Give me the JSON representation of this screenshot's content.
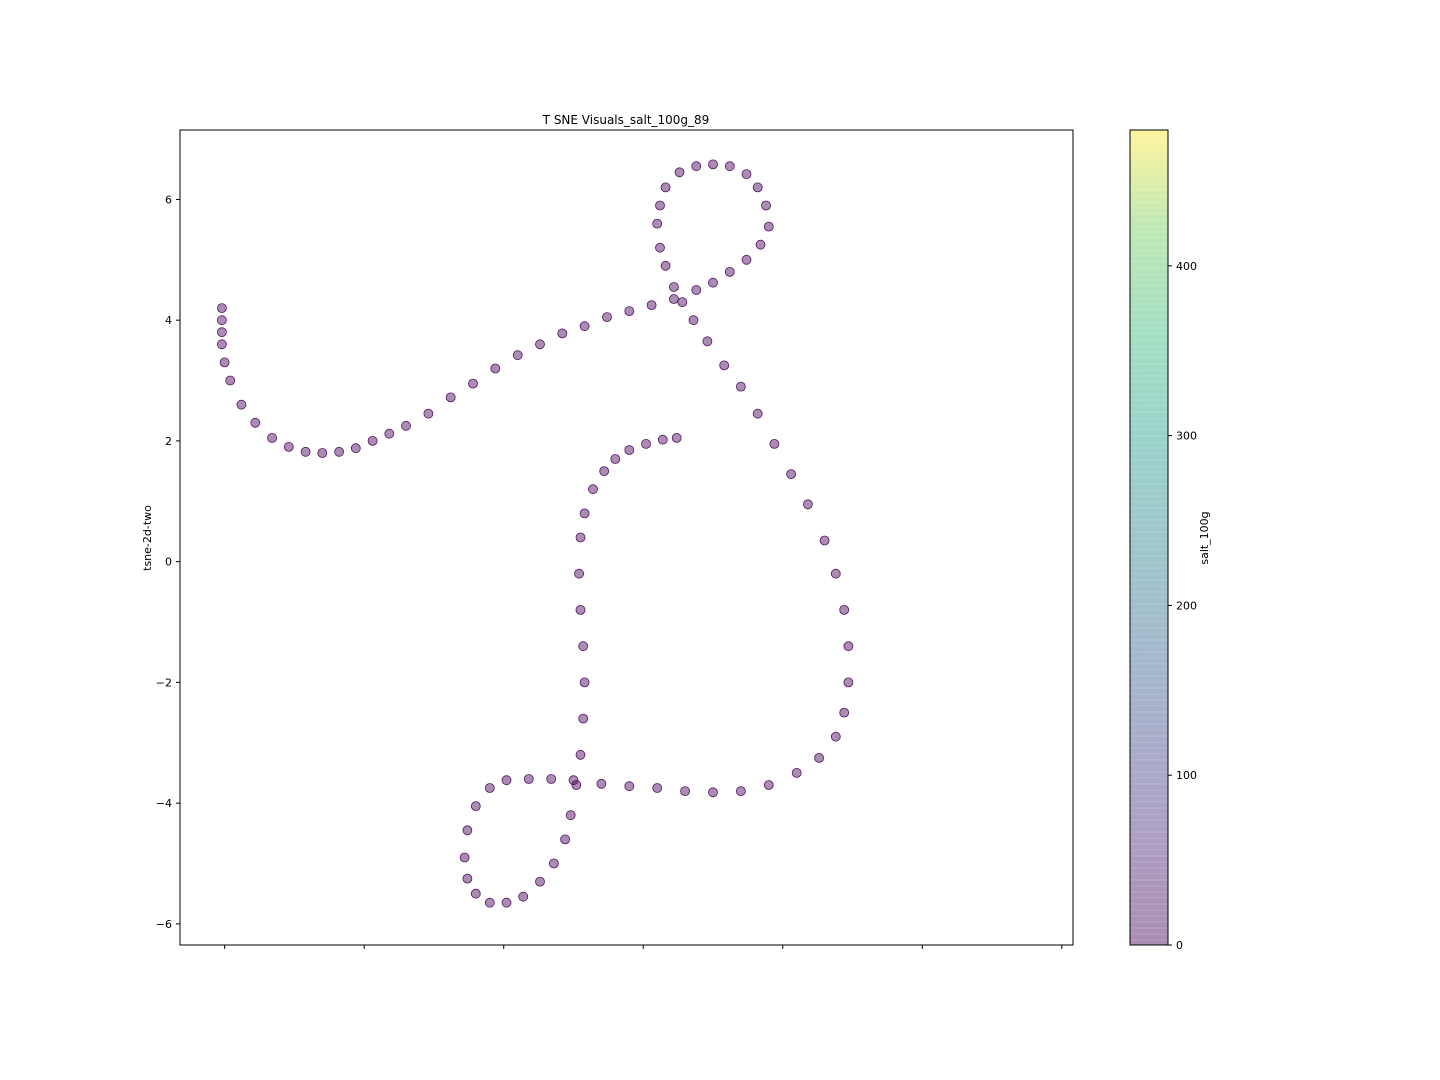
{
  "chart_data": {
    "type": "scatter",
    "title": "T SNE Visuals_salt_100g_89",
    "xlabel": "",
    "ylabel": "tsne-2d-two",
    "xlim": [
      -17.5,
      14.5
    ],
    "ylim": [
      -6.35,
      7.15
    ],
    "y_ticks": [
      -6,
      -4,
      -2,
      0,
      2,
      4,
      6
    ],
    "y_tick_labels": [
      "−6",
      "−4",
      "−2",
      "0",
      "2",
      "4",
      "6"
    ],
    "x_ticks": [
      -15.9,
      -10.9,
      -5.9,
      -0.9,
      4.1,
      9.1,
      14.1
    ],
    "x_tick_labels": [
      "",
      "",
      "",
      "",
      "",
      "",
      ""
    ],
    "grid": false,
    "marker_color": "#440154",
    "marker_alpha": 0.45,
    "series": [
      {
        "points": [
          [
            -16.0,
            4.2
          ],
          [
            -16.0,
            4.0
          ],
          [
            -16.0,
            3.8
          ],
          [
            -16.0,
            3.6
          ],
          [
            -15.9,
            3.3
          ],
          [
            -15.7,
            3.0
          ],
          [
            -15.3,
            2.6
          ],
          [
            -14.8,
            2.3
          ],
          [
            -14.2,
            2.05
          ],
          [
            -13.6,
            1.9
          ],
          [
            -13.0,
            1.82
          ],
          [
            -12.4,
            1.8
          ],
          [
            -11.8,
            1.82
          ],
          [
            -11.2,
            1.88
          ],
          [
            -10.6,
            2.0
          ],
          [
            -10.0,
            2.12
          ],
          [
            -9.4,
            2.25
          ],
          [
            -8.6,
            2.45
          ],
          [
            -7.8,
            2.72
          ],
          [
            -7.0,
            2.95
          ],
          [
            -6.2,
            3.2
          ],
          [
            -5.4,
            3.42
          ],
          [
            -4.6,
            3.6
          ],
          [
            -3.8,
            3.78
          ],
          [
            -3.0,
            3.9
          ],
          [
            -2.2,
            4.05
          ],
          [
            -1.4,
            4.15
          ],
          [
            -0.6,
            4.25
          ],
          [
            0.2,
            4.35
          ],
          [
            1.0,
            4.5
          ],
          [
            1.6,
            4.62
          ],
          [
            2.2,
            4.8
          ],
          [
            2.8,
            5.0
          ],
          [
            3.3,
            5.25
          ],
          [
            3.6,
            5.55
          ],
          [
            3.5,
            5.9
          ],
          [
            3.2,
            6.2
          ],
          [
            2.8,
            6.42
          ],
          [
            2.2,
            6.55
          ],
          [
            1.6,
            6.58
          ],
          [
            1.0,
            6.55
          ],
          [
            0.4,
            6.45
          ],
          [
            -0.1,
            6.2
          ],
          [
            -0.3,
            5.9
          ],
          [
            -0.4,
            5.6
          ],
          [
            -0.3,
            5.2
          ],
          [
            -0.1,
            4.9
          ],
          [
            0.2,
            4.55
          ],
          [
            0.5,
            4.3
          ],
          [
            0.9,
            4.0
          ],
          [
            1.4,
            3.65
          ],
          [
            2.0,
            3.25
          ],
          [
            2.6,
            2.9
          ],
          [
            3.2,
            2.45
          ],
          [
            3.8,
            1.95
          ],
          [
            4.4,
            1.45
          ],
          [
            5.0,
            0.95
          ],
          [
            5.6,
            0.35
          ],
          [
            6.0,
            -0.2
          ],
          [
            6.3,
            -0.8
          ],
          [
            6.45,
            -1.4
          ],
          [
            6.45,
            -2.0
          ],
          [
            6.3,
            -2.5
          ],
          [
            6.0,
            -2.9
          ],
          [
            5.4,
            -3.25
          ],
          [
            4.6,
            -3.5
          ],
          [
            3.6,
            -3.7
          ],
          [
            2.6,
            -3.8
          ],
          [
            1.6,
            -3.82
          ],
          [
            0.6,
            -3.8
          ],
          [
            -0.4,
            -3.75
          ],
          [
            -1.4,
            -3.72
          ],
          [
            -2.4,
            -3.68
          ],
          [
            -3.4,
            -3.62
          ],
          [
            -4.2,
            -3.6
          ],
          [
            -5.0,
            -3.6
          ],
          [
            -5.8,
            -3.62
          ],
          [
            -6.4,
            -3.75
          ],
          [
            -6.9,
            -4.05
          ],
          [
            -7.2,
            -4.45
          ],
          [
            -7.3,
            -4.9
          ],
          [
            -7.2,
            -5.25
          ],
          [
            -6.9,
            -5.5
          ],
          [
            -6.4,
            -5.65
          ],
          [
            -5.8,
            -5.65
          ],
          [
            -5.2,
            -5.55
          ],
          [
            -4.6,
            -5.3
          ],
          [
            -4.1,
            -5.0
          ],
          [
            -3.7,
            -4.6
          ],
          [
            -3.5,
            -4.2
          ],
          [
            -3.3,
            -3.7
          ],
          [
            -3.15,
            -3.2
          ],
          [
            -3.05,
            -2.6
          ],
          [
            -3.0,
            -2.0
          ],
          [
            -3.05,
            -1.4
          ],
          [
            -3.15,
            -0.8
          ],
          [
            -3.2,
            -0.2
          ],
          [
            -3.15,
            0.4
          ],
          [
            -3.0,
            0.8
          ],
          [
            -2.7,
            1.2
          ],
          [
            -2.3,
            1.5
          ],
          [
            -1.9,
            1.7
          ],
          [
            -1.4,
            1.85
          ],
          [
            -0.8,
            1.95
          ],
          [
            -0.2,
            2.02
          ],
          [
            0.3,
            2.05
          ]
        ]
      }
    ],
    "colorbar": {
      "label": "salt_100g",
      "cmap": "viridis",
      "min": 0,
      "max": 480,
      "ticks": [
        0,
        100,
        200,
        300,
        400
      ],
      "tick_labels": [
        "0",
        "100",
        "200",
        "300",
        "400"
      ],
      "alpha": 0.45
    }
  }
}
